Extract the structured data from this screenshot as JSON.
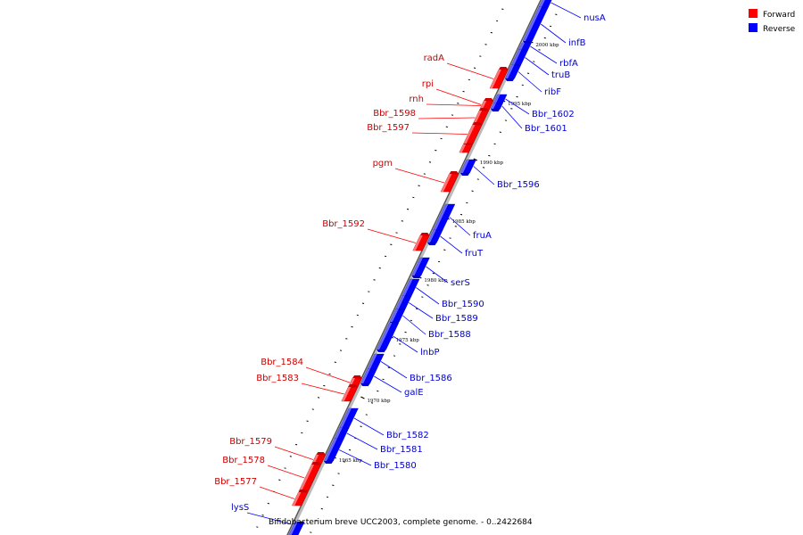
{
  "legend": {
    "forward_label": "Forward",
    "reverse_label": "Reverse",
    "forward_color": "#ff0000",
    "reverse_color": "#0000ff"
  },
  "caption": "Bifidobacterium breve UCC2003, complete genome. - 0..2422684",
  "scale_labels": [
    "2000 kbp",
    "1995 kbp",
    "1990 kbp",
    "1985 kbp",
    "1980 kbp",
    "1975 kbp",
    "1970 kbp",
    "1965 kbp"
  ],
  "genes_forward": [
    "radA",
    "rpi",
    "rnh",
    "Bbr_1598",
    "Bbr_1597",
    "pgm",
    "Bbr_1592",
    "Bbr_1584",
    "Bbr_1583",
    "Bbr_1579",
    "Bbr_1578",
    "Bbr_1577"
  ],
  "genes_reverse": [
    "nusA",
    "infB",
    "rbfA",
    "truB",
    "ribF",
    "Bbr_1602",
    "Bbr_1601",
    "Bbr_1596",
    "fruA",
    "fruT",
    "serS",
    "Bbr_1590",
    "Bbr_1589",
    "Bbr_1588",
    "lnbP",
    "Bbr_1586",
    "galE",
    "Bbr_1582",
    "Bbr_1581",
    "Bbr_1580",
    "lysS"
  ]
}
